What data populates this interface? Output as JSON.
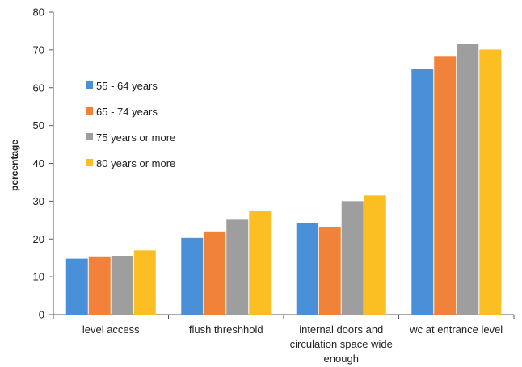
{
  "chart_data": {
    "type": "bar",
    "title": "",
    "xlabel": "",
    "ylabel": "percentage",
    "ylim": [
      0,
      80
    ],
    "yticks": [
      0,
      10,
      20,
      30,
      40,
      50,
      60,
      70,
      80
    ],
    "grid": false,
    "legend_position": "left",
    "categories": [
      [
        "level access"
      ],
      [
        "flush threshhold"
      ],
      [
        "internal doors and",
        "circulation space wide",
        "enough"
      ],
      [
        "wc at entrance level"
      ]
    ],
    "series": [
      {
        "name": "55 - 64 years",
        "color": "#4a90d9",
        "values": [
          14.8,
          20.3,
          24.3,
          65.0
        ]
      },
      {
        "name": "65 - 74 years",
        "color": "#f0823a",
        "values": [
          15.2,
          21.8,
          23.2,
          68.2
        ]
      },
      {
        "name": "75 years or more",
        "color": "#9e9e9e",
        "values": [
          15.5,
          25.1,
          30.0,
          71.6
        ]
      },
      {
        "name": " 80 years or more",
        "color": "#fbbf24",
        "values": [
          17.0,
          27.4,
          31.5,
          70.1
        ]
      }
    ]
  }
}
